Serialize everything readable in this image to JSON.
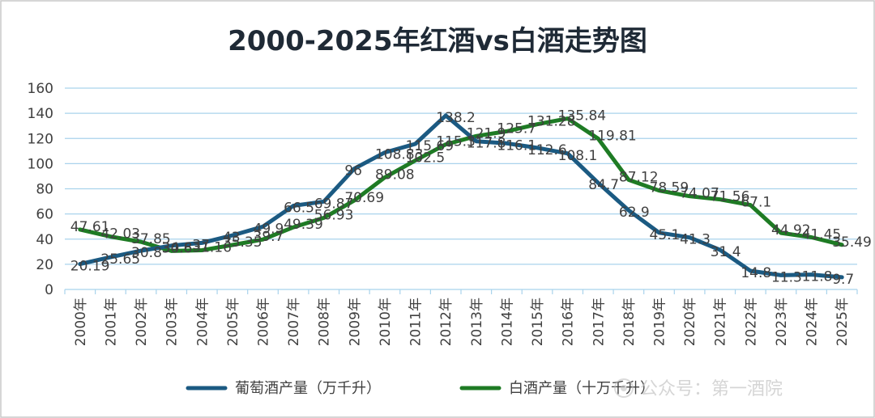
{
  "chart_data": {
    "type": "line",
    "title": "2000-2025年红酒vs白酒走势图",
    "xlabel": "",
    "ylabel": "",
    "ylim": [
      0,
      160
    ],
    "yticks": [
      0,
      20,
      40,
      60,
      80,
      100,
      120,
      140,
      160
    ],
    "grid": true,
    "legend_position": "bottom",
    "categories": [
      "2000年",
      "2001年",
      "2002年",
      "2003年",
      "2004年",
      "2005年",
      "2006年",
      "2007年",
      "2008年",
      "2009年",
      "2010年",
      "2011年",
      "2012年",
      "2013年",
      "2014年",
      "2015年",
      "2016年",
      "2017年",
      "2018年",
      "2019年",
      "2020年",
      "2021年",
      "2022年",
      "2023年",
      "2024年",
      "2025年"
    ],
    "series": [
      {
        "name": "葡萄酒产量（万千升）",
        "color": "#1b5a82",
        "values": [
          20.19,
          25.65,
          30.8,
          34.8,
          37,
          43,
          49.9,
          66.5,
          69.87,
          96,
          108.83,
          115.69,
          138.2,
          117.8,
          116.1,
          112.6,
          108.1,
          84.7,
          62.9,
          45.1,
          41.3,
          31.4,
          14.8,
          11.3,
          11.8,
          9.7
        ],
        "labels": [
          "20.19",
          "25.65",
          "30.8",
          "34.8",
          "37",
          "43",
          "49.9",
          "66.5",
          "69.87",
          "96",
          "108.83",
          "115.69",
          "138.2",
          "117.8",
          "116.1",
          "112.6",
          "108.1",
          "84.7",
          "62.9",
          "45.1",
          "41.3",
          "31.4",
          "14.8",
          "11.3",
          "11.8",
          "9.7"
        ]
      },
      {
        "name": "白酒产量（十万千升）",
        "color": "#1e7b24",
        "values": [
          47.61,
          42.03,
          37.85,
          30.6,
          31.16,
          35.35,
          39.7,
          49.39,
          56.93,
          70.69,
          89.08,
          102.5,
          115.3,
          121.9,
          125.7,
          131.28,
          135.84,
          119.81,
          87.12,
          78.59,
          74.07,
          71.56,
          67.1,
          44.92,
          41.45,
          35.49
        ],
        "labels": [
          "47.61",
          "42.03",
          "37.85",
          "30.6",
          "31.16",
          "35.35",
          "39.7",
          "49.39",
          "56.93",
          "70.69",
          "89.08",
          "102.5",
          "115.3",
          "121.9",
          "125.7",
          "131.28",
          "135.84",
          "119.81",
          "87.12",
          "78.59",
          "74.07",
          "71.56",
          "67.1",
          "44.92",
          "41.45",
          "35.49"
        ]
      }
    ]
  },
  "watermark": {
    "icon": "snowball-icon",
    "text": "公众号：第一酒院"
  }
}
